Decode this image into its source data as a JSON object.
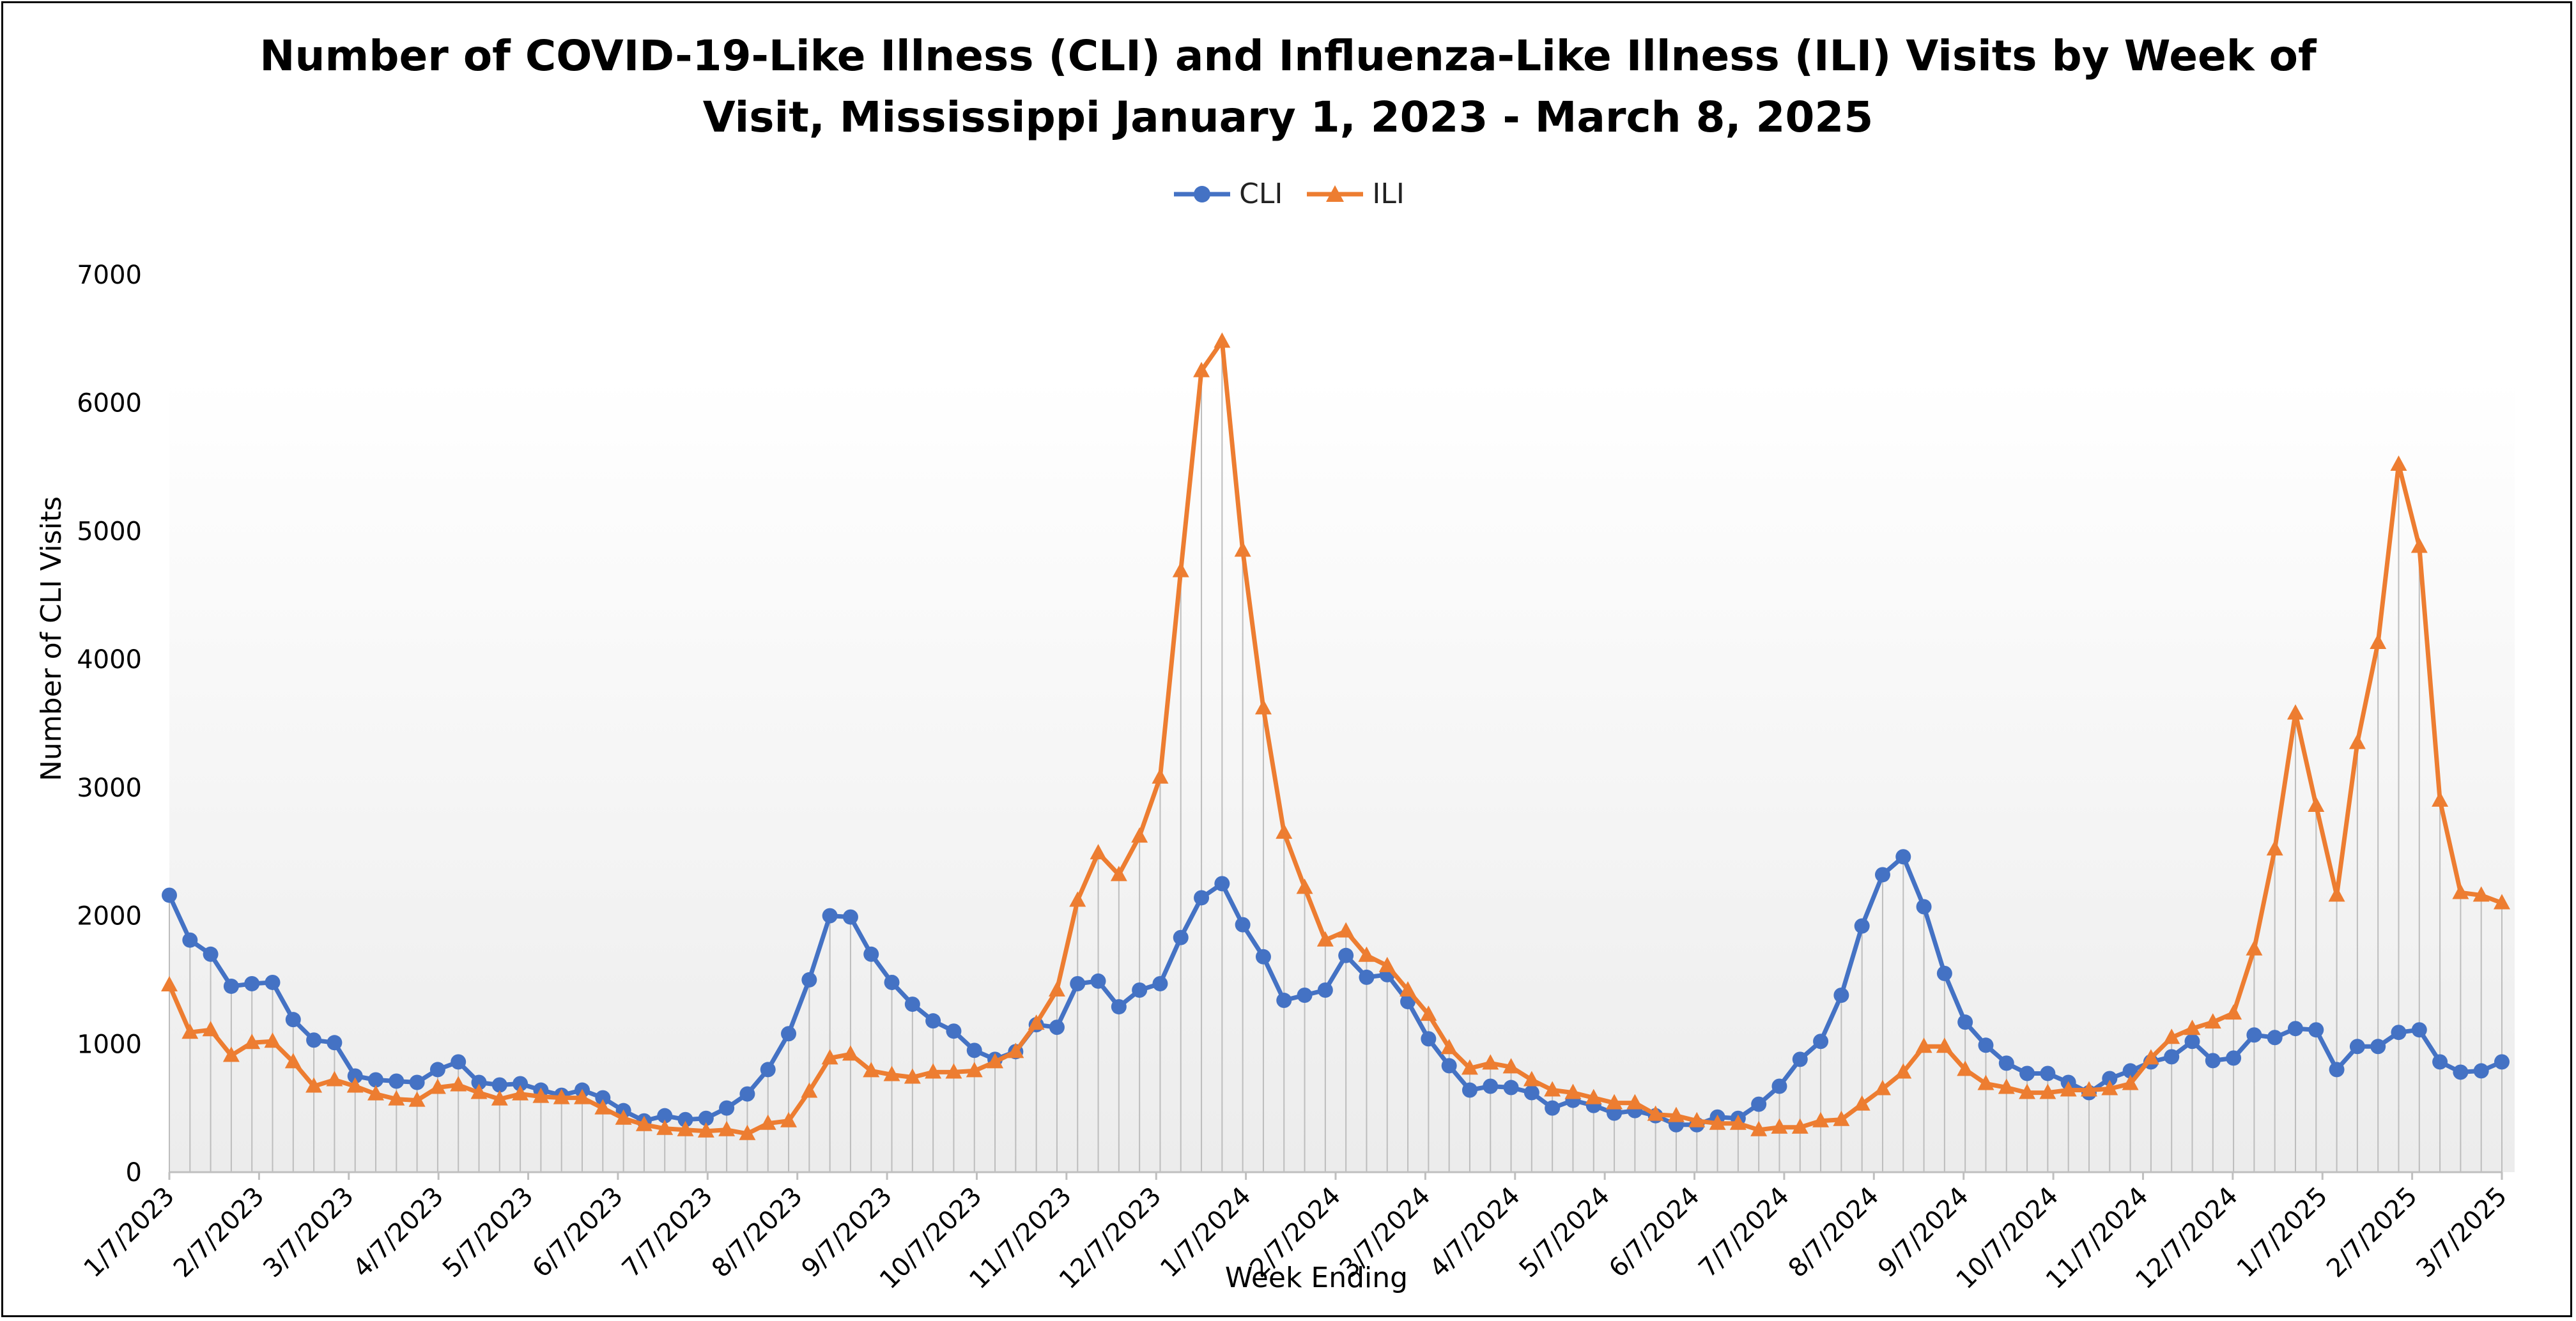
{
  "chart_data": {
    "type": "line",
    "title": "Number of COVID-19-Like Illness (CLI) and Influenza-Like Illness (ILI) Visits by Week of",
    "title_line2": "Visit, Mississippi January 1, 2023 - March 8, 2025",
    "xlabel": "Week Ending",
    "ylabel": "Number of CLI Visits",
    "ylim": [
      0,
      7000
    ],
    "yticks": [
      0,
      1000,
      2000,
      3000,
      4000,
      5000,
      6000,
      7000
    ],
    "xtick_labels": [
      "1/7/2023",
      "2/7/2023",
      "3/7/2023",
      "4/7/2023",
      "5/7/2023",
      "6/7/2023",
      "7/7/2023",
      "8/7/2023",
      "9/7/2023",
      "10/7/2023",
      "11/7/2023",
      "12/7/2023",
      "1/7/2024",
      "2/7/2024",
      "3/7/2024",
      "4/7/2024",
      "5/7/2024",
      "6/7/2024",
      "7/7/2024",
      "8/7/2024",
      "9/7/2024",
      "10/7/2024",
      "11/7/2024",
      "12/7/2024",
      "1/7/2025",
      "2/7/2025",
      "3/7/2025"
    ],
    "legend_position": "top-center",
    "grid": "vertical drop lines",
    "series": [
      {
        "name": "CLI",
        "color": "#4472C4",
        "marker": "circle",
        "values": [
          2160,
          1810,
          1700,
          1450,
          1470,
          1480,
          1190,
          1030,
          1010,
          750,
          720,
          710,
          700,
          800,
          860,
          700,
          680,
          690,
          640,
          600,
          640,
          580,
          480,
          400,
          440,
          410,
          420,
          500,
          610,
          800,
          1080,
          1500,
          2000,
          1990,
          1700,
          1480,
          1310,
          1180,
          1100,
          950,
          880,
          940,
          1150,
          1130,
          1470,
          1490,
          1290,
          1420,
          1470,
          1830,
          2140,
          2250,
          1930,
          1680,
          1340,
          1380,
          1420,
          1690,
          1520,
          1540,
          1330,
          1040,
          830,
          640,
          670,
          660,
          620,
          500,
          560,
          520,
          460,
          480,
          440,
          370,
          370,
          430,
          420,
          530,
          670,
          880,
          1020,
          1380,
          1920,
          2320,
          2460,
          2070,
          1550,
          1170,
          990,
          850,
          770,
          770,
          700,
          620,
          730,
          790,
          860,
          900,
          1020,
          870,
          890,
          1070,
          1050,
          1120,
          1110,
          800,
          980,
          980,
          1090,
          1110,
          860,
          780,
          790,
          860
        ]
      },
      {
        "name": "ILI",
        "color": "#ED7D31",
        "marker": "triangle",
        "values": [
          1460,
          1090,
          1110,
          910,
          1010,
          1020,
          860,
          670,
          720,
          670,
          610,
          570,
          560,
          660,
          680,
          620,
          570,
          610,
          590,
          580,
          580,
          500,
          420,
          370,
          340,
          330,
          320,
          330,
          300,
          380,
          400,
          630,
          890,
          920,
          790,
          760,
          740,
          780,
          780,
          790,
          860,
          940,
          1160,
          1420,
          2120,
          2490,
          2320,
          2620,
          3080,
          4690,
          6250,
          6480,
          4850,
          3620,
          2650,
          2220,
          1810,
          1880,
          1690,
          1610,
          1420,
          1230,
          970,
          810,
          850,
          820,
          720,
          640,
          620,
          580,
          540,
          540,
          450,
          440,
          400,
          380,
          380,
          330,
          350,
          350,
          400,
          410,
          530,
          650,
          780,
          980,
          980,
          800,
          690,
          660,
          620,
          620,
          640,
          640,
          650,
          690,
          890,
          1050,
          1120,
          1170,
          1240,
          1740,
          2520,
          3580,
          2860,
          2160,
          3350,
          4130,
          5520,
          4880,
          2900,
          2180,
          2160,
          2100
        ]
      }
    ]
  }
}
